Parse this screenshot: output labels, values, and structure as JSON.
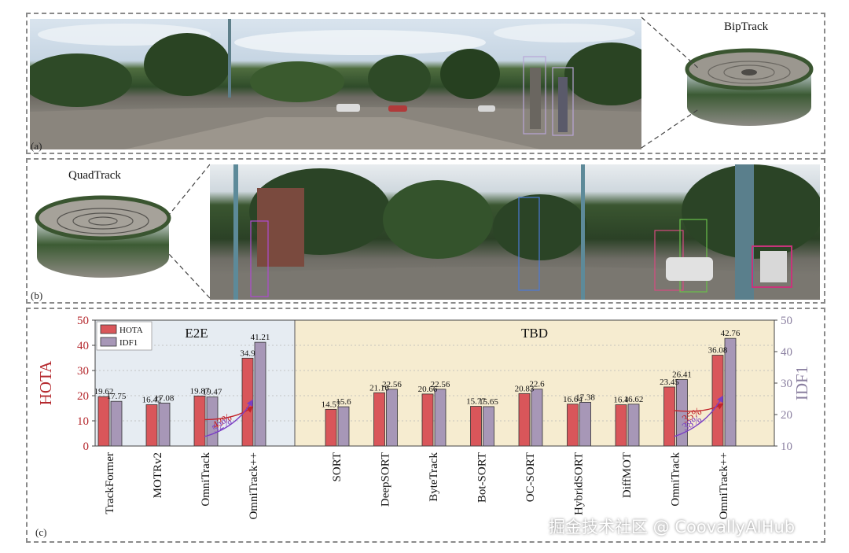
{
  "panel_a": {
    "letter": "(a)",
    "cylinder_title": "BipTrack"
  },
  "panel_b": {
    "letter": "(b)",
    "cylinder_title": "QuadTrack"
  },
  "panel_c": {
    "letter": "(c)"
  },
  "watermark": "掘金技术社区 @ CoovallyAIHub",
  "chart_data": {
    "type": "bar",
    "title": "",
    "ylabel_left": "HOTA",
    "ylabel_right": "IDF1",
    "ylim_left": [
      0,
      50
    ],
    "ylim_right": [
      10,
      50
    ],
    "yticks_left": [
      0,
      10,
      20,
      30,
      40,
      50
    ],
    "yticks_right": [
      10,
      20,
      30,
      40,
      50
    ],
    "legend": {
      "placement": "top-left",
      "entries": [
        "HOTA",
        "IDF1"
      ]
    },
    "groups": [
      {
        "label": "E2E",
        "categories": [
          "TrackFormer",
          "MOTRv2",
          "OmniTrack",
          "OmniTrack++"
        ],
        "background": "#e6ecf2"
      },
      {
        "label": "TBD",
        "categories": [
          "SORT",
          "DeepSORT",
          "ByteTrack",
          "Bot-SORT",
          "OC-SORT",
          "HybridSORT",
          "DiffMOT",
          "OmniTrack",
          "OmniTrack++"
        ],
        "background": "#f6ecd0"
      }
    ],
    "categories": [
      "TrackFormer",
      "MOTRv2",
      "OmniTrack",
      "OmniTrack++",
      "SORT",
      "DeepSORT",
      "ByteTrack",
      "Bot-SORT",
      "OC-SORT",
      "HybridSORT",
      "DiffMOT",
      "OmniTrack",
      "OmniTrack++"
    ],
    "series": [
      {
        "name": "HOTA",
        "color": "#d9565a",
        "axis": "left",
        "values": [
          19.62,
          16.42,
          19.87,
          34.9,
          14.57,
          21.16,
          20.66,
          15.77,
          20.83,
          16.64,
          16.4,
          23.45,
          36.08
        ],
        "labels": [
          "19.62",
          "16.42",
          "19.87",
          "34.9",
          "14.57",
          "21.16",
          "20.66",
          "15.77",
          "20.83",
          "16.64",
          "16.4",
          "23.45",
          "36.08"
        ]
      },
      {
        "name": "IDF1",
        "color": "#a797b7",
        "axis": "left",
        "values": [
          17.75,
          17.08,
          19.47,
          41.21,
          15.6,
          22.56,
          22.56,
          15.65,
          22.6,
          17.38,
          16.62,
          26.41,
          42.76
        ],
        "labels": [
          "17.75",
          "17.08",
          "19.47",
          "41.21",
          "15.6",
          "22.56",
          "22.56",
          "15.65",
          "22.6",
          "17.38",
          "16.62",
          "26.41",
          "42.76"
        ]
      }
    ],
    "annotations": [
      {
        "text": "43%",
        "from_category": 2,
        "to_category": 3,
        "series": "HOTA",
        "color": "#c2232a"
      },
      {
        "text": "52%",
        "from_category": 2,
        "to_category": 3,
        "series": "IDF1",
        "color": "#7b3fc4"
      },
      {
        "text": "35%",
        "from_category": 11,
        "to_category": 12,
        "series": "HOTA",
        "color": "#c2232a"
      },
      {
        "text": "38%",
        "from_category": 11,
        "to_category": 12,
        "series": "IDF1",
        "color": "#7b3fc4"
      }
    ],
    "colors": {
      "axis_left": "#b5292e",
      "axis_right": "#8a7fa0"
    }
  }
}
